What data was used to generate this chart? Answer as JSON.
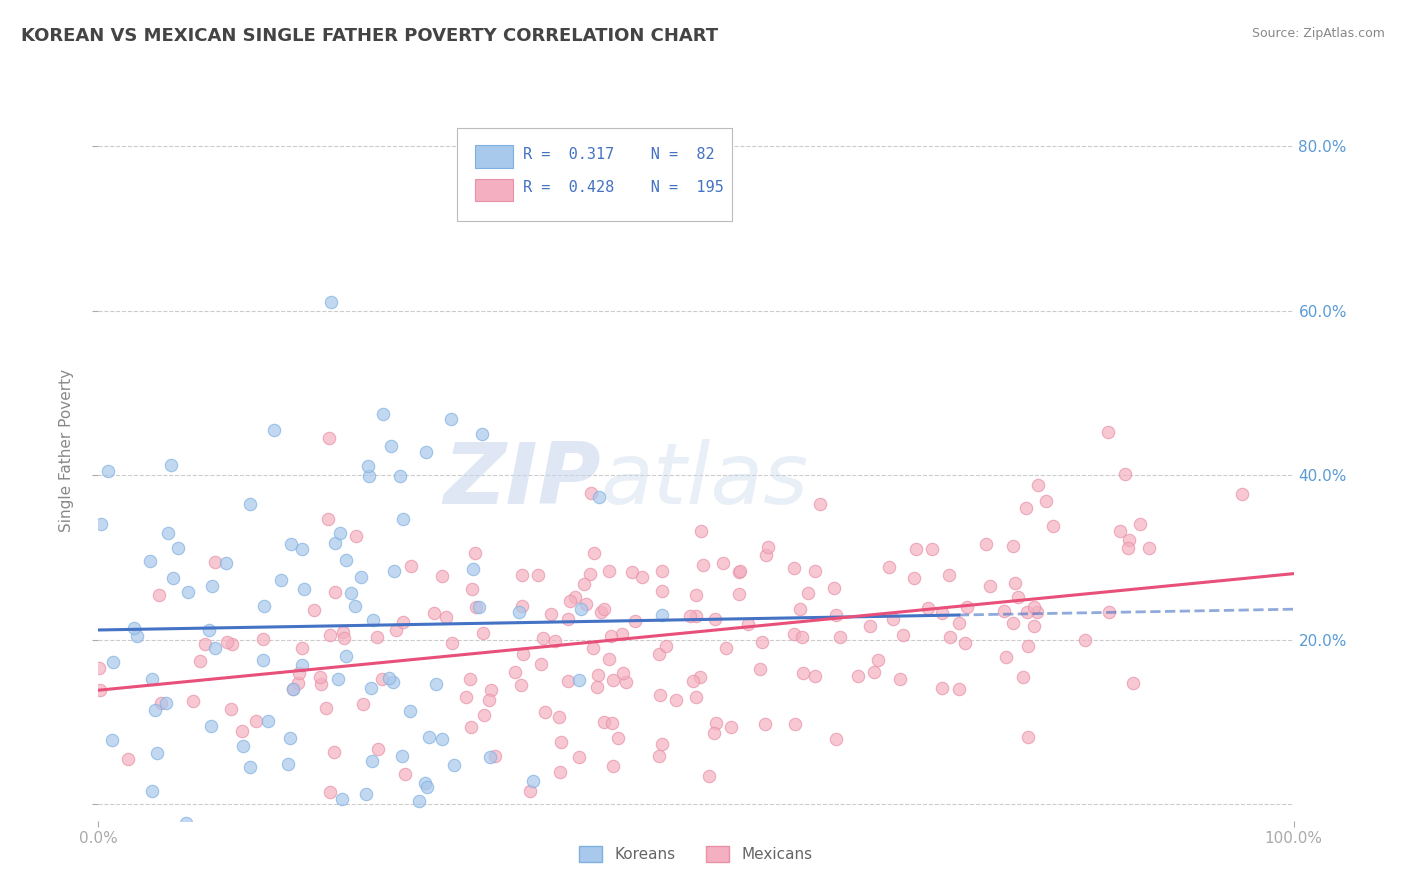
{
  "title": "KOREAN VS MEXICAN SINGLE FATHER POVERTY CORRELATION CHART",
  "source": "Source: ZipAtlas.com",
  "ylabel": "Single Father Poverty",
  "xlabel": "",
  "watermark": "ZIPatlas",
  "korean_R": 0.317,
  "korean_N": 82,
  "mexican_R": 0.428,
  "mexican_N": 195,
  "korean_color": "#A8C8EC",
  "korean_edge_color": "#7EB0E0",
  "mexican_color": "#F4B0C0",
  "mexican_edge_color": "#E890A8",
  "korean_line_color": "#4472C4",
  "mexican_line_color": "#E8507A",
  "bg_color": "#FFFFFF",
  "plot_bg_color": "#FFFFFF",
  "grid_color": "#CCCCCC",
  "xlim": [
    0.0,
    1.0
  ],
  "ylim": [
    -0.02,
    0.88
  ],
  "x_ticks": [
    0.0,
    1.0
  ],
  "x_tick_labels": [
    "0.0%",
    "100.0%"
  ],
  "y_ticks": [
    0.0,
    0.2,
    0.4,
    0.6,
    0.8
  ],
  "y_tick_labels": [
    "",
    "20.0%",
    "40.0%",
    "60.0%",
    "80.0%"
  ],
  "legend_labels": [
    "Koreans",
    "Mexicans"
  ],
  "title_color": "#444444",
  "axis_color": "#AAAAAA",
  "tick_color": "#5B9BD5"
}
